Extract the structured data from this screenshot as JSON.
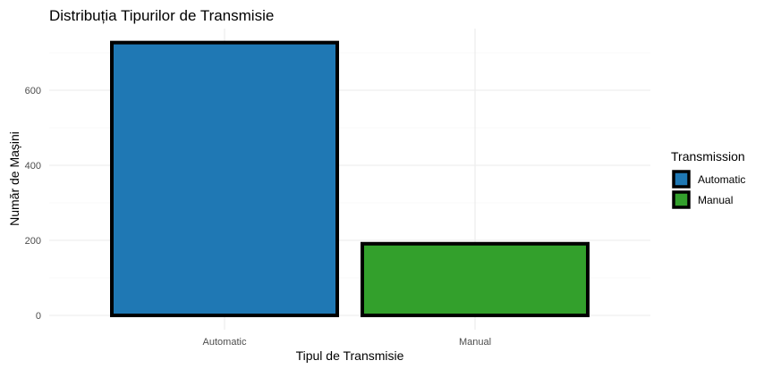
{
  "chart_data": {
    "type": "bar",
    "title": "Distribuția Tipurilor de Transmisie",
    "xlabel": "Tipul de Transmisie",
    "ylabel": "Număr de Mașini",
    "categories": [
      "Automatic",
      "Manual"
    ],
    "values": [
      727,
      191
    ],
    "colors": [
      "#1f78b4",
      "#33a02c"
    ],
    "bar_outline_color": "#000000",
    "ylim": [
      0,
      730
    ],
    "yticks": [
      0,
      200,
      400,
      600
    ],
    "grid": true,
    "legend": {
      "title": "Transmission",
      "placement": "right",
      "entries": [
        "Automatic",
        "Manual"
      ]
    }
  }
}
